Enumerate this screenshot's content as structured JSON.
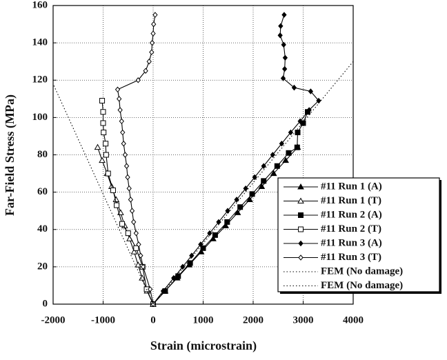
{
  "chart_data": {
    "type": "line",
    "xlabel": "Strain (microstrain)",
    "ylabel": "Far-Field Stress (MPa)",
    "xlim": [
      -2000,
      4000
    ],
    "xticks": [
      -2000,
      -1000,
      0,
      1000,
      2000,
      3000,
      4000
    ],
    "ylim": [
      0,
      160
    ],
    "yticks": [
      0,
      20,
      40,
      60,
      80,
      100,
      120,
      140,
      160
    ],
    "grid": true,
    "legend": "lower right",
    "series": [
      {
        "name": "#11 Run 1 (A)",
        "color": "#000000",
        "marker": "triangle",
        "filled": true,
        "dash": "solid",
        "x": [
          0,
          240,
          480,
          720,
          960,
          1200,
          1450,
          1690,
          1930,
          2170,
          2410,
          2650,
          2890
        ],
        "values": [
          0,
          7,
          14,
          21,
          28,
          35,
          42,
          49,
          56,
          63,
          70,
          77,
          84
        ]
      },
      {
        "name": "#11 Run 1 (T)",
        "color": "#000000",
        "marker": "triangle",
        "filled": false,
        "dash": "solid",
        "x": [
          0,
          -120,
          -220,
          -300,
          -380,
          -470,
          -570,
          -650,
          -740,
          -830,
          -920,
          -1020,
          -1110
        ],
        "values": [
          0,
          7,
          14,
          21,
          28,
          35,
          42,
          49,
          56,
          63,
          70,
          77,
          84
        ]
      },
      {
        "name": "#11 Run 2 (A)",
        "color": "#000000",
        "marker": "square",
        "filled": true,
        "dash": "solid",
        "x": [
          0,
          240,
          500,
          740,
          1000,
          1240,
          1480,
          1740,
          1980,
          2210,
          2480,
          2710,
          2880,
          2890,
          3000,
          3090
        ],
        "values": [
          0,
          7,
          15,
          22,
          30,
          37,
          44,
          52,
          59,
          66,
          74,
          81,
          84,
          92,
          97,
          103
        ]
      },
      {
        "name": "#11 Run 2 (T)",
        "color": "#000000",
        "marker": "square",
        "filled": false,
        "dash": "solid",
        "x": [
          0,
          -130,
          -210,
          -340,
          -500,
          -620,
          -730,
          -800,
          -900,
          -940,
          -950,
          -990,
          -1000,
          -1000,
          -1020
        ],
        "values": [
          0,
          8,
          20,
          30,
          38,
          43,
          53,
          61,
          70,
          80,
          86,
          92,
          97,
          103,
          109
        ]
      },
      {
        "name": "#11 Run 3 (A)",
        "color": "#000000",
        "marker": "diamond",
        "filled": true,
        "dash": "solid",
        "x": [
          0,
          200,
          410,
          590,
          770,
          950,
          1130,
          1310,
          1490,
          1670,
          1850,
          2030,
          2210,
          2390,
          2570,
          2750,
          2940,
          3120,
          3310,
          3150,
          2820,
          2600,
          2630,
          2640,
          2610,
          2540,
          2550,
          2620
        ],
        "values": [
          0,
          7,
          14,
          20,
          26,
          32,
          38,
          44,
          50,
          56,
          62,
          68,
          74,
          80,
          86,
          92,
          98,
          104,
          109,
          114,
          116,
          121,
          126,
          132,
          139,
          144,
          149,
          155
        ]
      },
      {
        "name": "#11 Run 3 (T)",
        "color": "#000000",
        "marker": "diamond",
        "filled": false,
        "dash": "solid",
        "x": [
          0,
          -60,
          -200,
          -250,
          -290,
          -340,
          -390,
          -420,
          -450,
          -480,
          -510,
          -530,
          -560,
          -590,
          -610,
          -630,
          -660,
          -680,
          -710,
          -300,
          -150,
          -80,
          -30,
          -20,
          0,
          10,
          40
        ],
        "values": [
          0,
          8,
          20,
          26,
          32,
          38,
          44,
          50,
          56,
          62,
          68,
          74,
          80,
          86,
          92,
          98,
          104,
          110,
          115,
          120,
          125,
          130,
          135,
          140,
          145,
          150,
          155
        ]
      },
      {
        "name": "FEM (No damage)",
        "color": "#000000",
        "marker": "none",
        "filled": false,
        "dash": "dotted",
        "x": [
          0,
          4000
        ],
        "values": [
          0,
          130
        ]
      },
      {
        "name": "FEM (No damage)",
        "color": "#000000",
        "marker": "none",
        "filled": false,
        "dash": "dotted",
        "x": [
          0,
          -2000
        ],
        "values": [
          0,
          118
        ]
      }
    ]
  }
}
